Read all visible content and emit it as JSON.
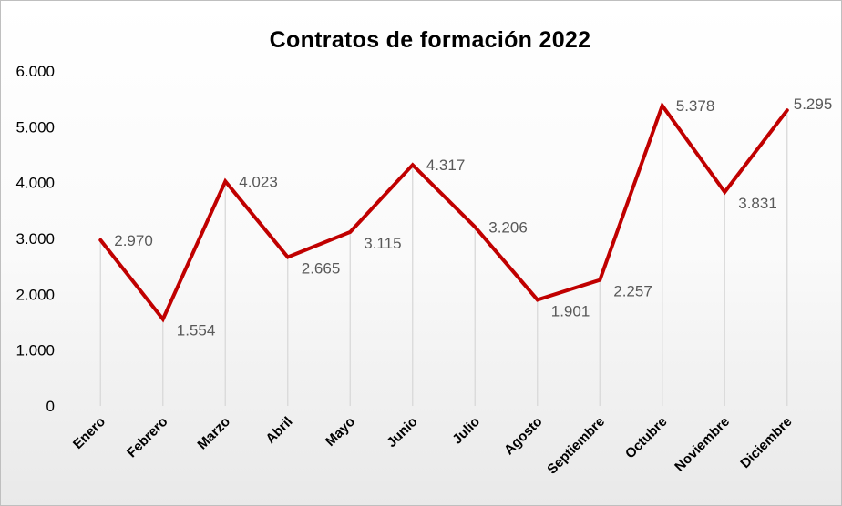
{
  "chart_data": {
    "type": "line",
    "title": "Contratos de formación 2022",
    "xlabel": "",
    "ylabel": "",
    "categories": [
      "Enero",
      "Febrero",
      "Marzo",
      "Abril",
      "Mayo",
      "Junio",
      "Julio",
      "Agosto",
      "Septiembre",
      "Octubre",
      "Noviembre",
      "Diciembre"
    ],
    "series": [
      {
        "values": [
          2970,
          1554,
          4023,
          2665,
          3115,
          4317,
          3206,
          1901,
          2257,
          5378,
          3831,
          5295
        ],
        "labels": [
          "2.970",
          "1.554",
          "4.023",
          "2.665",
          "3.115",
          "4.317",
          "3.206",
          "1.901",
          "2.257",
          "5.378",
          "3.831",
          "5.295"
        ],
        "color": "#c00000"
      }
    ],
    "yticks": [
      0,
      1000,
      2000,
      3000,
      4000,
      5000,
      6000
    ],
    "ytick_labels": [
      "0",
      "1.000",
      "2.000",
      "3.000",
      "4.000",
      "5.000",
      "6.000"
    ],
    "ylim": [
      0,
      6000
    ],
    "grid": false,
    "drop_lines": true,
    "drop_line_color": "#d9d9d9",
    "legend": "none"
  }
}
